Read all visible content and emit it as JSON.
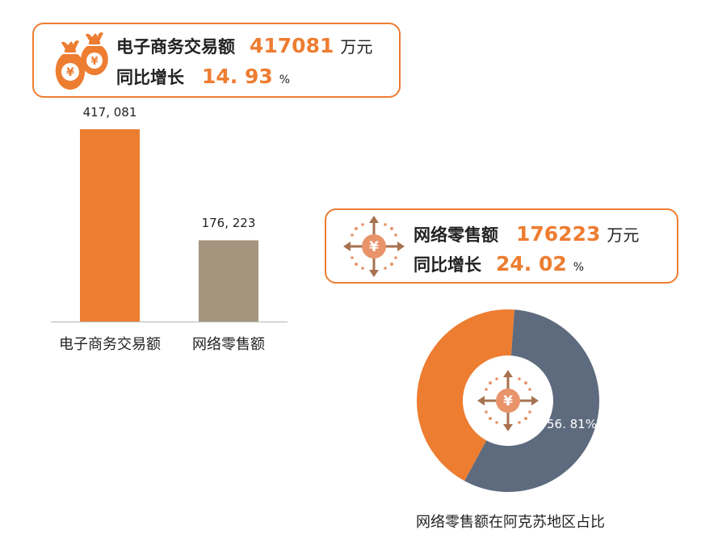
{
  "card1": {
    "icon": "money-bag-icon",
    "label": "电子商务交易额",
    "value": "417081",
    "unit": "万元",
    "growth_label": "同比增长",
    "growth_value": "14. 93",
    "growth_unit": "%"
  },
  "card2": {
    "icon": "yuan-arrows-icon",
    "label": "网络零售额",
    "value": "176223",
    "unit": "万元",
    "growth_label": "同比增长",
    "growth_value": "24. 02",
    "growth_unit": "%"
  },
  "colors": {
    "accent": "#ED7D31",
    "bar2": "#A5957F",
    "pie_slate": "#5E6B7E",
    "icon_brown": "#A6724F"
  },
  "chart_data": [
    {
      "type": "bar",
      "categories": [
        "电子商务交易额",
        "网络零售额"
      ],
      "values": [
        417081,
        176223
      ],
      "data_labels": [
        "417, 081",
        "176, 223"
      ],
      "colors": [
        "#ED7D31",
        "#A5957F"
      ],
      "ylim": [
        0,
        417081
      ],
      "grid": false
    },
    {
      "type": "pie",
      "donut": true,
      "slices": [
        {
          "value": 56.81,
          "label": "56. 81%",
          "color": "#5E6B7E"
        },
        {
          "value": 43.19,
          "color": "#ED7D31"
        }
      ],
      "caption": "网络零售额在阿克苏地区占比"
    }
  ]
}
